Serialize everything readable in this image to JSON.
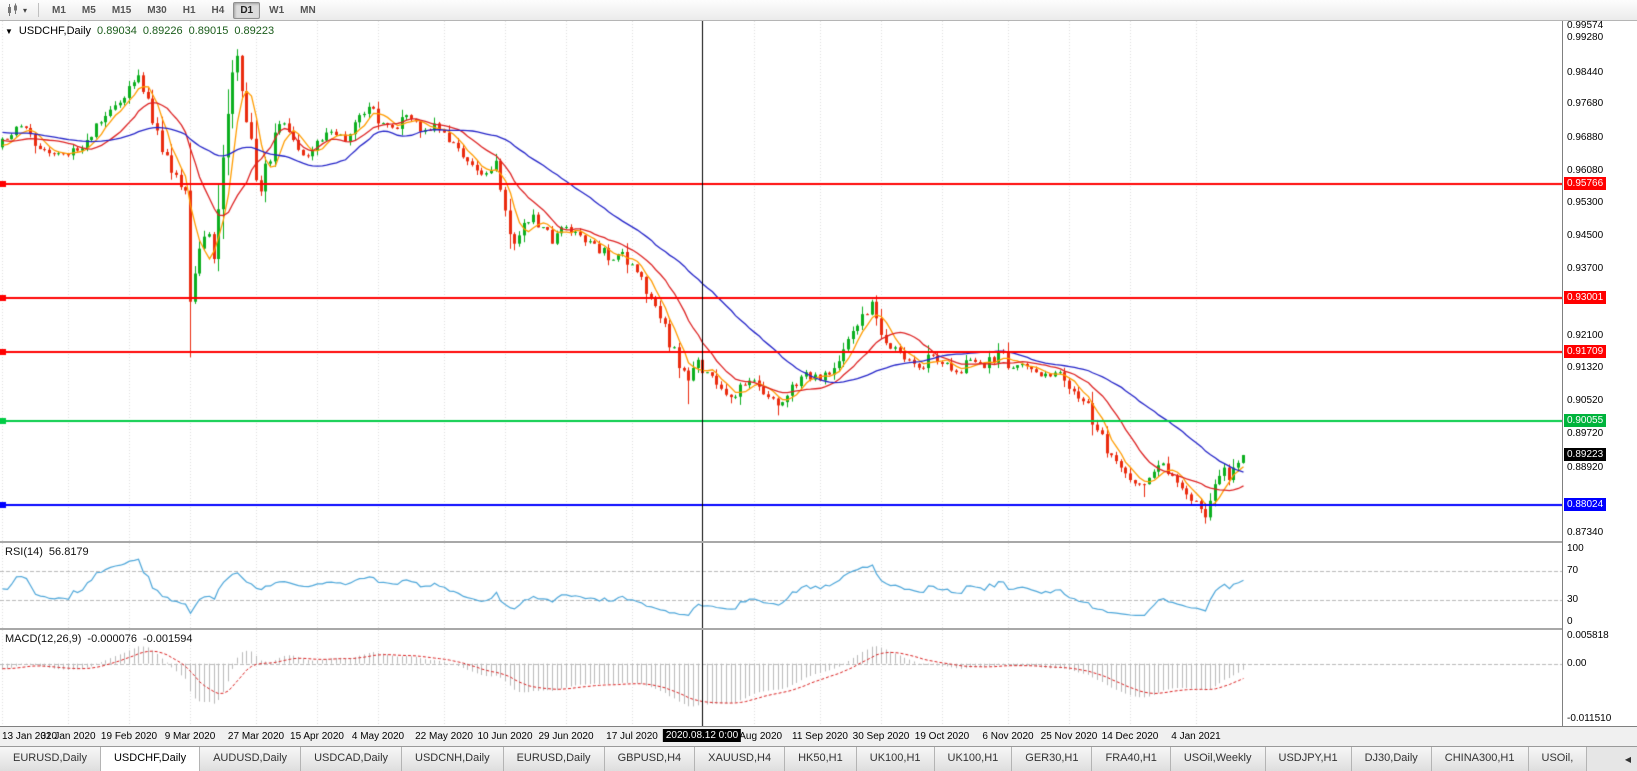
{
  "toolbar": {
    "timeframes": [
      "M1",
      "M5",
      "M15",
      "M30",
      "H1",
      "H4",
      "D1",
      "W1",
      "MN"
    ],
    "active": "D1",
    "caret": "▾"
  },
  "chart": {
    "marker": "▼",
    "symbol": "USDCHF,Daily",
    "open": "0.89034",
    "high": "0.89226",
    "low": "0.89015",
    "close": "0.89223"
  },
  "price_scale": {
    "plain": [
      {
        "text": "0.99574",
        "value": 0.99574
      },
      {
        "text": "0.99280",
        "value": 0.9928
      },
      {
        "text": "0.98440",
        "value": 0.9844
      },
      {
        "text": "0.97680",
        "value": 0.9768
      },
      {
        "text": "0.96880",
        "value": 0.9688
      },
      {
        "text": "0.96080",
        "value": 0.9608
      },
      {
        "text": "0.95300",
        "value": 0.953
      },
      {
        "text": "0.94500",
        "value": 0.945
      },
      {
        "text": "0.93700",
        "value": 0.937
      },
      {
        "text": "0.92100",
        "value": 0.921
      },
      {
        "text": "0.91320",
        "value": 0.9132
      },
      {
        "text": "0.90520",
        "value": 0.9052
      },
      {
        "text": "0.89720",
        "value": 0.8972
      },
      {
        "text": "0.88920",
        "value": 0.8892
      },
      {
        "text": "0.87340",
        "value": 0.8734
      }
    ],
    "badges": [
      {
        "text": "0.95766",
        "value": 0.95766,
        "type": "red"
      },
      {
        "text": "0.93001",
        "value": 0.93001,
        "type": "red"
      },
      {
        "text": "0.91709",
        "value": 0.91709,
        "type": "red"
      },
      {
        "text": "0.90055",
        "value": 0.90055,
        "type": "green"
      },
      {
        "text": "0.89223",
        "value": 0.89223,
        "type": "black"
      },
      {
        "text": "0.88024",
        "value": 0.88024,
        "type": "blue"
      }
    ]
  },
  "rsi": {
    "label": "RSI(14)",
    "value": "56.8179",
    "period": 14,
    "color": "#4da6d9",
    "levels": [
      70,
      30
    ],
    "scale": [
      {
        "text": "100",
        "value": 100
      },
      {
        "text": "70",
        "value": 70
      },
      {
        "text": "30",
        "value": 30
      },
      {
        "text": "0",
        "value": 0
      }
    ]
  },
  "macd": {
    "label": "MACD(12,26,9)",
    "main_value": "-0.000076",
    "signal_value": "-0.001594",
    "hist_color": "#b9b9b9",
    "signal_color": "#d92020",
    "range": [
      -0.0122,
      0.0062
    ],
    "scale": [
      {
        "text": "0.005818",
        "value": 0.005818
      },
      {
        "text": "0.00",
        "value": 0
      },
      {
        "text": "-0.011510",
        "value": -0.01151
      }
    ]
  },
  "time_axis": {
    "labels": [
      {
        "text": "13 Jan 2020",
        "index": 0
      },
      {
        "text": "31 Jan 2020",
        "index": 14
      },
      {
        "text": "19 Feb 2020",
        "index": 27
      },
      {
        "text": "9 Mar 2020",
        "index": 40
      },
      {
        "text": "27 Mar 2020",
        "index": 54
      },
      {
        "text": "15 Apr 2020",
        "index": 67
      },
      {
        "text": "4 May 2020",
        "index": 80
      },
      {
        "text": "22 May 2020",
        "index": 94
      },
      {
        "text": "10 Jun 2020",
        "index": 107
      },
      {
        "text": "29 Jun 2020",
        "index": 120
      },
      {
        "text": "17 Jul 2020",
        "index": 134
      },
      {
        "text": "24 Aug 2020",
        "index": 160
      },
      {
        "text": "11 Sep 2020",
        "index": 174
      },
      {
        "text": "30 Sep 2020",
        "index": 187
      },
      {
        "text": "19 Oct 2020",
        "index": 200
      },
      {
        "text": "6 Nov 2020",
        "index": 214
      },
      {
        "text": "25 Nov 2020",
        "index": 227
      },
      {
        "text": "14 Dec 2020",
        "index": 240
      },
      {
        "text": "4 Jan 2021",
        "index": 254
      }
    ],
    "crosshair": {
      "text": "2020.08.12 0:00",
      "index": 149
    }
  },
  "tabs": {
    "items": [
      "EURUSD,Daily",
      "USDCHF,Daily",
      "AUDUSD,Daily",
      "USDCAD,Daily",
      "USDCNH,Daily",
      "EURUSD,Daily",
      "GBPUSD,H4",
      "XAUUSD,H4",
      "HK50,H1",
      "UK100,H1",
      "UK100,H1",
      "GER30,H1",
      "FRA40,H1",
      "USOil,Weekly",
      "USDJPY,H1",
      "DJ30,Daily",
      "CHINA300,H1",
      "USOil,"
    ],
    "active_index": 1,
    "scroll_icon": "◀"
  },
  "chart_data": {
    "type": "candlestick",
    "symbol": "USDCHF",
    "timeframe": "Daily",
    "bars": 265,
    "bar_space": 4.7,
    "price_range": {
      "top": 0.9969,
      "bottom": 0.8715
    },
    "up_color": "#0caf1f",
    "down_color": "#ea2b0f",
    "grid_color": "#dcdcdc",
    "h_lines": [
      {
        "value": 0.95766,
        "color": "#ff0000"
      },
      {
        "value": 0.93001,
        "color": "#ff0000"
      },
      {
        "value": 0.91709,
        "color": "#ff0000"
      },
      {
        "value": 0.90055,
        "color": "#00cc44"
      },
      {
        "value": 0.88024,
        "color": "#0000ff"
      }
    ],
    "moving_averages": [
      {
        "period": 5,
        "color": "#ff9c00"
      },
      {
        "period": 13,
        "color": "#dd2222"
      },
      {
        "period": 34,
        "color": "#2323c8"
      }
    ],
    "waypoints": [
      [
        0,
        0.9685
      ],
      [
        4,
        0.9715
      ],
      [
        8,
        0.966
      ],
      [
        11,
        0.9648
      ],
      [
        14,
        0.9645
      ],
      [
        18,
        0.9682
      ],
      [
        22,
        0.974
      ],
      [
        25,
        0.9772
      ],
      [
        27,
        0.9812
      ],
      [
        29,
        0.9838
      ],
      [
        31,
        0.9782
      ],
      [
        33,
        0.9705
      ],
      [
        35,
        0.9645
      ],
      [
        37,
        0.9598
      ],
      [
        39,
        0.956
      ],
      [
        40,
        0.9292
      ],
      [
        41,
        0.936
      ],
      [
        42,
        0.942
      ],
      [
        44,
        0.9455
      ],
      [
        45,
        0.9395
      ],
      [
        46,
        0.9515
      ],
      [
        47,
        0.964
      ],
      [
        48,
        0.9745
      ],
      [
        49,
        0.9845
      ],
      [
        50,
        0.9885
      ],
      [
        51,
        0.98
      ],
      [
        52,
        0.9725
      ],
      [
        53,
        0.9685
      ],
      [
        54,
        0.9585
      ],
      [
        55,
        0.9558
      ],
      [
        56,
        0.9625
      ],
      [
        58,
        0.97
      ],
      [
        60,
        0.9722
      ],
      [
        62,
        0.9682
      ],
      [
        64,
        0.9645
      ],
      [
        67,
        0.968
      ],
      [
        70,
        0.9702
      ],
      [
        73,
        0.9678
      ],
      [
        76,
        0.9742
      ],
      [
        78,
        0.9762
      ],
      [
        80,
        0.9722
      ],
      [
        83,
        0.9712
      ],
      [
        86,
        0.9742
      ],
      [
        89,
        0.9702
      ],
      [
        92,
        0.9722
      ],
      [
        94,
        0.97
      ],
      [
        97,
        0.9662
      ],
      [
        100,
        0.9622
      ],
      [
        103,
        0.9602
      ],
      [
        105,
        0.9632
      ],
      [
        106,
        0.9562
      ],
      [
        107,
        0.9512
      ],
      [
        108,
        0.9455
      ],
      [
        109,
        0.9432
      ],
      [
        111,
        0.9482
      ],
      [
        113,
        0.9502
      ],
      [
        115,
        0.9472
      ],
      [
        117,
        0.9432
      ],
      [
        120,
        0.9472
      ],
      [
        123,
        0.9452
      ],
      [
        126,
        0.9432
      ],
      [
        129,
        0.9392
      ],
      [
        132,
        0.9412
      ],
      [
        134,
        0.9382
      ],
      [
        136,
        0.9352
      ],
      [
        138,
        0.9302
      ],
      [
        140,
        0.9252
      ],
      [
        142,
        0.9182
      ],
      [
        144,
        0.9132
      ],
      [
        146,
        0.9102
      ],
      [
        148,
        0.9152
      ],
      [
        150,
        0.9122
      ],
      [
        152,
        0.9092
      ],
      [
        155,
        0.9062
      ],
      [
        157,
        0.9092
      ],
      [
        160,
        0.9102
      ],
      [
        163,
        0.9062
      ],
      [
        165,
        0.9042
      ],
      [
        168,
        0.9092
      ],
      [
        171,
        0.9122
      ],
      [
        174,
        0.9102
      ],
      [
        177,
        0.9132
      ],
      [
        180,
        0.9202
      ],
      [
        183,
        0.9262
      ],
      [
        185,
        0.9292
      ],
      [
        187,
        0.9212
      ],
      [
        190,
        0.9182
      ],
      [
        193,
        0.9152
      ],
      [
        196,
        0.9132
      ],
      [
        198,
        0.9162
      ],
      [
        200,
        0.9142
      ],
      [
        203,
        0.9122
      ],
      [
        206,
        0.9152
      ],
      [
        209,
        0.9132
      ],
      [
        212,
        0.9172
      ],
      [
        214,
        0.9132
      ],
      [
        217,
        0.9142
      ],
      [
        220,
        0.9122
      ],
      [
        223,
        0.9112
      ],
      [
        225,
        0.9122
      ],
      [
        227,
        0.9082
      ],
      [
        230,
        0.9052
      ],
      [
        233,
        0.8982
      ],
      [
        236,
        0.8922
      ],
      [
        238,
        0.8892
      ],
      [
        240,
        0.8862
      ],
      [
        243,
        0.8852
      ],
      [
        245,
        0.8882
      ],
      [
        247,
        0.8902
      ],
      [
        249,
        0.8872
      ],
      [
        251,
        0.8842
      ],
      [
        253,
        0.8812
      ],
      [
        255,
        0.8792
      ],
      [
        256,
        0.8772
      ],
      [
        257,
        0.8812
      ],
      [
        258,
        0.8852
      ],
      [
        259,
        0.8872
      ],
      [
        260,
        0.8892
      ],
      [
        261,
        0.8862
      ],
      [
        262,
        0.8892
      ],
      [
        263,
        0.89034
      ],
      [
        264,
        0.89223
      ]
    ],
    "overrides": {
      "29": {
        "high": 0.9852
      },
      "40": {
        "low": 0.9158
      },
      "50": {
        "high": 0.9901
      },
      "146": {
        "low": 0.9045
      },
      "155": {
        "low": 0.9047
      },
      "165": {
        "low": 0.9018
      },
      "185": {
        "high": 0.9297
      },
      "212": {
        "high": 0.9192
      },
      "243": {
        "low": 0.8821
      },
      "256": {
        "low": 0.8757
      }
    }
  }
}
